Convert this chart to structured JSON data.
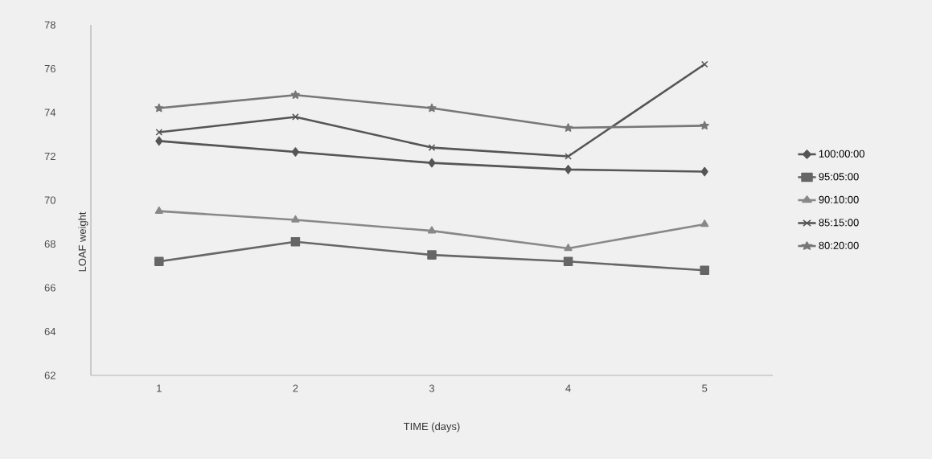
{
  "chart_data": {
    "type": "line",
    "xlabel": "TIME (days)",
    "ylabel": "LOAF weight",
    "categories": [
      "1",
      "2",
      "3",
      "4",
      "5"
    ],
    "series": [
      {
        "name": "100:00:00",
        "color": "#555555",
        "marker": "diamond",
        "values": [
          72.7,
          72.2,
          71.7,
          71.4,
          71.3
        ]
      },
      {
        "name": "95:05:00",
        "color": "#666666",
        "marker": "square",
        "values": [
          67.2,
          68.1,
          67.5,
          67.2,
          66.8
        ]
      },
      {
        "name": "90:10:00",
        "color": "#888888",
        "marker": "triangle",
        "values": [
          69.5,
          69.1,
          68.6,
          67.8,
          68.9
        ]
      },
      {
        "name": "85:15:00",
        "color": "#555555",
        "marker": "cross",
        "values": [
          73.1,
          73.8,
          72.4,
          72.0,
          76.2
        ]
      },
      {
        "name": "80:20:00",
        "color": "#777777",
        "marker": "star",
        "values": [
          74.2,
          74.8,
          74.2,
          73.3,
          73.4
        ]
      }
    ],
    "ylim": [
      62,
      78
    ],
    "yticks": [
      62,
      64,
      66,
      68,
      70,
      72,
      74,
      76,
      78
    ],
    "grid": false,
    "legend": "right",
    "line_style": "solid"
  }
}
